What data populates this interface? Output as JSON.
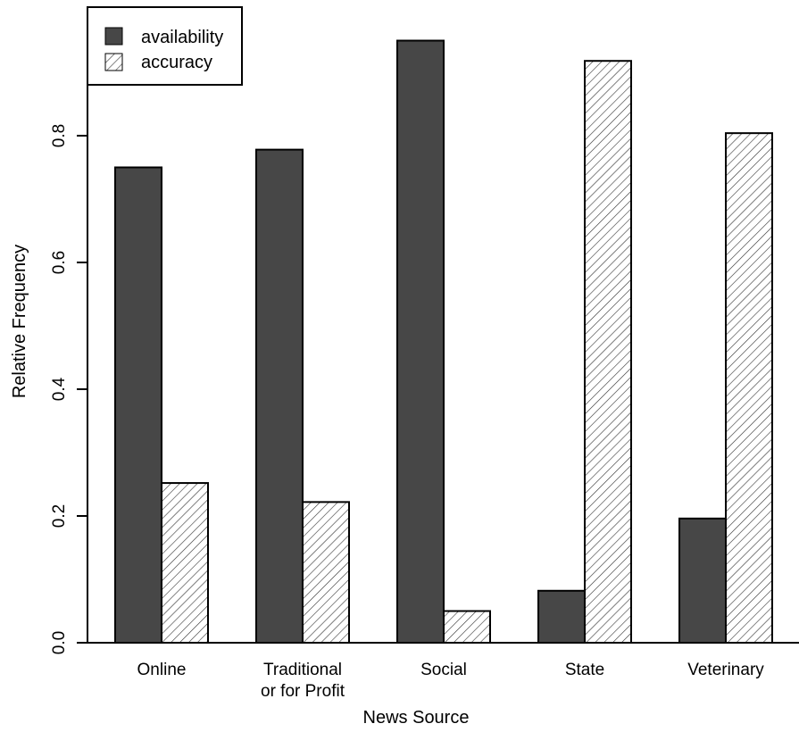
{
  "chart_data": {
    "type": "bar",
    "title": "",
    "xlabel": "News Source",
    "ylabel": "Relative Frequency",
    "categories": [
      [
        "Online"
      ],
      [
        "Traditional",
        "or for Profit"
      ],
      [
        "Social"
      ],
      [
        "State"
      ],
      [
        "Veterinary"
      ]
    ],
    "series": [
      {
        "name": "availability",
        "fill": "solid",
        "color": "#474747",
        "values": [
          0.75,
          0.778,
          0.95,
          0.082,
          0.196
        ]
      },
      {
        "name": "accuracy",
        "fill": "hatched",
        "color": "#333333",
        "values": [
          0.252,
          0.222,
          0.05,
          0.918,
          0.804
        ]
      }
    ],
    "ylim": [
      0,
      1
    ],
    "yticks": [
      0.0,
      0.2,
      0.4,
      0.6,
      0.8
    ],
    "ytick_labels": [
      "0.0",
      "0.2",
      "0.4",
      "0.6",
      "0.8"
    ],
    "grid": false,
    "legend_position": "top-left"
  }
}
